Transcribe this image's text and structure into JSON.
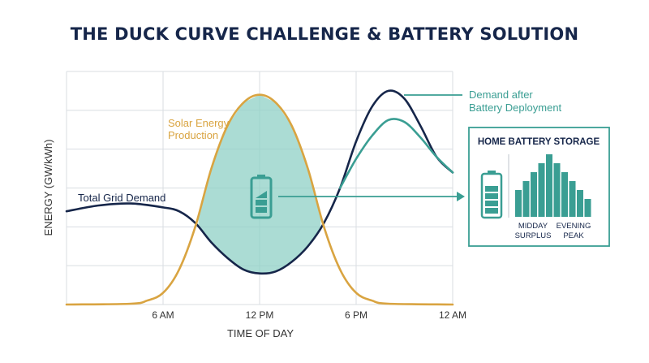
{
  "title": "THE DUCK CURVE CHALLENGE & BATTERY SOLUTION",
  "chart_data": {
    "type": "line",
    "xlabel": "TIME OF DAY",
    "ylabel": "ENERGY (GW/kWh)",
    "xlim": [
      0,
      24
    ],
    "x_ticks": [
      {
        "x": 6,
        "label": "6 AM"
      },
      {
        "x": 12,
        "label": "12 PM"
      },
      {
        "x": 18,
        "label": "6 PM"
      },
      {
        "x": 24,
        "label": "12 AM"
      }
    ],
    "ylim": [
      0,
      6
    ],
    "grid": true,
    "series": [
      {
        "name": "Total Grid Demand",
        "color": "#16264a",
        "x": [
          0,
          2,
          4,
          6,
          7,
          8,
          9,
          10,
          11,
          12,
          13,
          14,
          15,
          16,
          17,
          18,
          19,
          20,
          21,
          22,
          23,
          24
        ],
        "y": [
          2.4,
          2.55,
          2.6,
          2.5,
          2.4,
          2.1,
          1.6,
          1.2,
          0.9,
          0.8,
          0.85,
          1.1,
          1.5,
          2.1,
          3.0,
          4.2,
          5.1,
          5.5,
          5.3,
          4.6,
          3.8,
          3.4
        ]
      },
      {
        "name": "Solar Energy Production",
        "color": "#d9a441",
        "x": [
          0,
          4,
          5,
          6,
          7,
          8,
          9,
          10,
          11,
          12,
          13,
          14,
          15,
          16,
          17,
          18,
          19,
          20,
          24
        ],
        "y": [
          0,
          0.02,
          0.1,
          0.3,
          0.9,
          2.0,
          3.5,
          4.6,
          5.2,
          5.4,
          5.2,
          4.6,
          3.5,
          2.0,
          0.9,
          0.3,
          0.1,
          0.02,
          0
        ]
      },
      {
        "name": "Demand after Battery Deployment",
        "color": "#3a9e93",
        "x": [
          17,
          18,
          19,
          20,
          21,
          22,
          23,
          24
        ],
        "y": [
          3.0,
          3.75,
          4.35,
          4.75,
          4.7,
          4.3,
          3.8,
          3.4
        ]
      }
    ],
    "annotations": {
      "demand_label": "Total Grid Demand",
      "solar_label_line1": "Solar Energy",
      "solar_label_line2": "Production",
      "after_label_line1": "Demand after",
      "after_label_line2": "Battery Deployment"
    }
  },
  "battery_panel": {
    "title": "HOME BATTERY STORAGE",
    "bars": [
      3,
      4,
      5,
      6,
      7,
      6,
      5,
      4,
      3,
      2
    ],
    "label_left_line1": "MIDDAY",
    "label_left_line2": "SURPLUS",
    "label_right_line1": "EVENING",
    "label_right_line2": "PEAK"
  },
  "colors": {
    "navy": "#16264a",
    "gold": "#d9a441",
    "teal": "#3a9e93",
    "teal_fill": "#8fd0c6",
    "grid": "#d9dde2"
  },
  "icons": [
    "battery-icon",
    "arrow-right-icon"
  ]
}
